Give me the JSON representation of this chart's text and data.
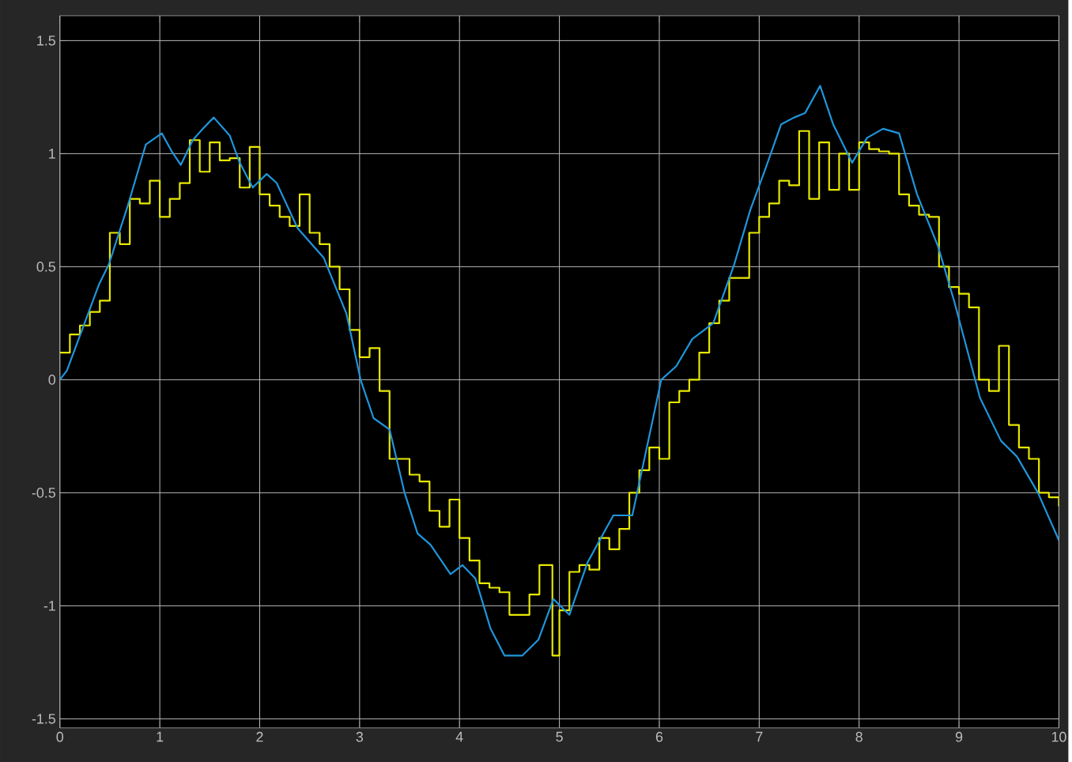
{
  "chart_data": {
    "type": "line",
    "xlim": [
      0,
      10
    ],
    "ylim": [
      -1.54,
      1.61
    ],
    "xticks": [
      0,
      1,
      2,
      3,
      4,
      5,
      6,
      7,
      8,
      9,
      10
    ],
    "yticks": [
      -1.5,
      -1,
      -0.5,
      0,
      0.5,
      1,
      1.5
    ],
    "grid": true,
    "series": [
      {
        "type": "step",
        "color": "#e8e800",
        "x": [
          0,
          0.1,
          0.2,
          0.3,
          0.4,
          0.5,
          0.6,
          0.7,
          0.8,
          0.9,
          1.0,
          1.1,
          1.2,
          1.3,
          1.4,
          1.5,
          1.6,
          1.7,
          1.8,
          1.9,
          2.0,
          2.1,
          2.2,
          2.3,
          2.4,
          2.5,
          2.6,
          2.7,
          2.8,
          2.9,
          3.0,
          3.1,
          3.2,
          3.3,
          3.4,
          3.5,
          3.6,
          3.7,
          3.8,
          3.9,
          4.0,
          4.1,
          4.2,
          4.3,
          4.4,
          4.5,
          4.6,
          4.7,
          4.8,
          4.93,
          5.0,
          5.1,
          5.2,
          5.3,
          5.4,
          5.5,
          5.6,
          5.7,
          5.8,
          5.9,
          6.0,
          6.1,
          6.2,
          6.3,
          6.4,
          6.5,
          6.6,
          6.7,
          6.8,
          6.9,
          7.0,
          7.1,
          7.2,
          7.3,
          7.4,
          7.5,
          7.6,
          7.7,
          7.8,
          7.9,
          8.0,
          8.1,
          8.2,
          8.3,
          8.4,
          8.5,
          8.6,
          8.7,
          8.8,
          8.9,
          9.0,
          9.1,
          9.2,
          9.3,
          9.4,
          9.5,
          9.6,
          9.7,
          9.8,
          9.9,
          10.0
        ],
        "values": [
          0.12,
          0.2,
          0.24,
          0.3,
          0.35,
          0.65,
          0.6,
          0.8,
          0.78,
          0.88,
          0.72,
          0.8,
          0.87,
          1.06,
          0.92,
          1.05,
          0.97,
          0.98,
          0.85,
          1.03,
          0.82,
          0.77,
          0.72,
          0.68,
          0.82,
          0.65,
          0.6,
          0.5,
          0.4,
          0.22,
          0.1,
          0.14,
          -0.05,
          -0.35,
          -0.35,
          -0.42,
          -0.45,
          -0.58,
          -0.65,
          -0.53,
          -0.7,
          -0.8,
          -0.9,
          -0.92,
          -0.94,
          -1.04,
          -1.04,
          -0.95,
          -0.82,
          -1.22,
          -1.02,
          -0.85,
          -0.82,
          -0.84,
          -0.7,
          -0.75,
          -0.66,
          -0.5,
          -0.4,
          -0.3,
          -0.35,
          -0.1,
          -0.05,
          0.0,
          0.12,
          0.25,
          0.35,
          0.45,
          0.45,
          0.65,
          0.72,
          0.78,
          0.88,
          0.86,
          1.1,
          0.8,
          1.05,
          0.84,
          1.0,
          0.84,
          1.05,
          1.02,
          1.01,
          1.0,
          0.82,
          0.77,
          0.73,
          0.72,
          0.5,
          0.41,
          0.38,
          0.32,
          0.0,
          -0.05,
          0.15,
          -0.2,
          -0.3,
          -0.35,
          -0.5,
          -0.52,
          -0.56
        ]
      },
      {
        "color": "#1f96dc",
        "x": [
          0,
          0.07,
          0.23,
          0.39,
          0.49,
          0.68,
          0.86,
          1.02,
          1.12,
          1.21,
          1.33,
          1.43,
          1.54,
          1.7,
          1.8,
          1.93,
          2.07,
          2.17,
          2.38,
          2.64,
          2.87,
          3.01,
          3.14,
          3.3,
          3.45,
          3.58,
          3.71,
          3.91,
          4.03,
          4.16,
          4.31,
          4.45,
          4.63,
          4.79,
          4.94,
          5.1,
          5.28,
          5.54,
          5.73,
          6.02,
          6.17,
          6.33,
          6.54,
          6.75,
          6.91,
          7.06,
          7.22,
          7.35,
          7.46,
          7.61,
          7.74,
          7.93,
          8.08,
          8.24,
          8.4,
          8.58,
          8.79,
          8.95,
          9.21,
          9.42,
          9.58,
          9.79,
          10.0
        ],
        "values": [
          0,
          0.04,
          0.23,
          0.42,
          0.51,
          0.77,
          1.04,
          1.09,
          1.01,
          0.95,
          1.06,
          1.11,
          1.16,
          1.08,
          0.96,
          0.85,
          0.91,
          0.87,
          0.67,
          0.54,
          0.29,
          0,
          -0.17,
          -0.22,
          -0.5,
          -0.68,
          -0.73,
          -0.86,
          -0.82,
          -0.88,
          -1.1,
          -1.22,
          -1.22,
          -1.15,
          -0.97,
          -1.04,
          -0.81,
          -0.6,
          -0.6,
          0.0,
          0.06,
          0.18,
          0.25,
          0.51,
          0.75,
          0.93,
          1.13,
          1.16,
          1.18,
          1.3,
          1.13,
          0.96,
          1.07,
          1.11,
          1.09,
          0.82,
          0.59,
          0.35,
          -0.08,
          -0.27,
          -0.34,
          -0.5,
          -0.71
        ]
      }
    ]
  }
}
